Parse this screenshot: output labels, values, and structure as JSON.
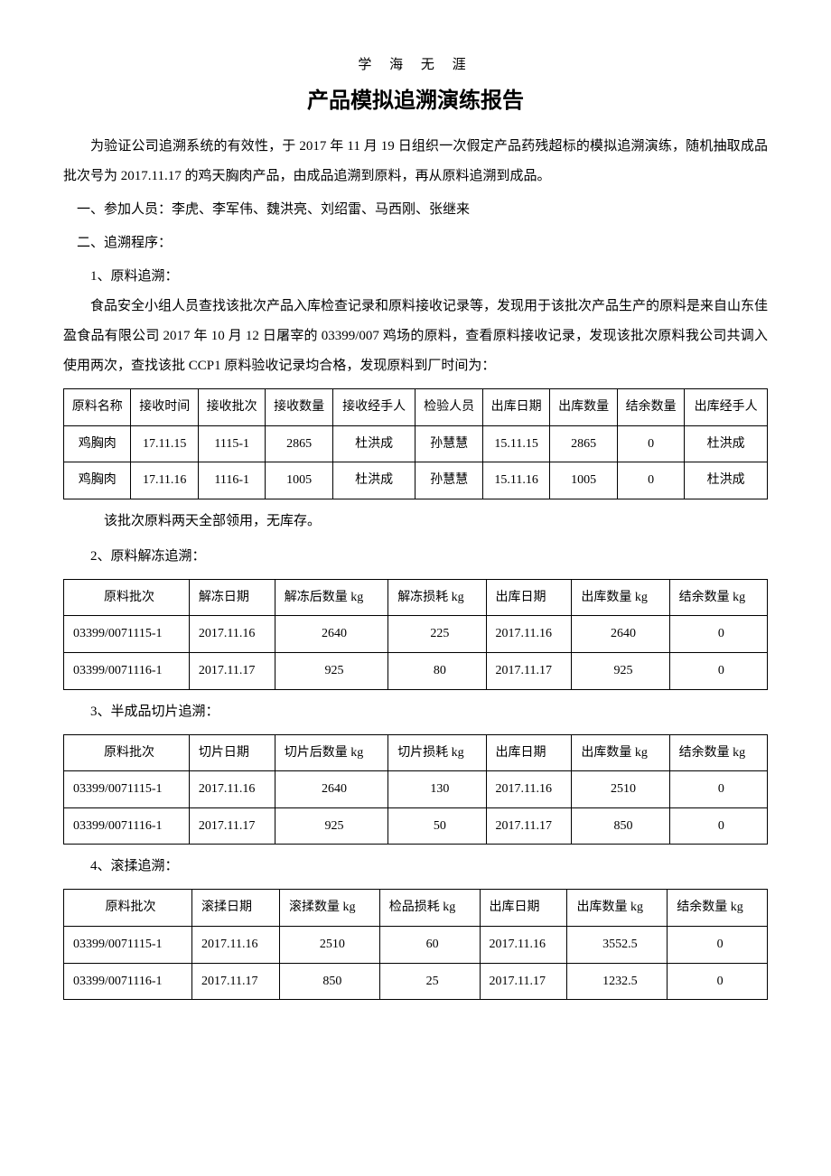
{
  "header_note": "学 海 无 涯",
  "title": "产品模拟追溯演练报告",
  "para1": "为验证公司追溯系统的有效性，于 2017 年 11 月 19 日组织一次假定产品药残超标的模拟追溯演练，随机抽取成品批次号为 2017.11.17 的鸡天胸肉产品，由成品追溯到原料，再从原料追溯到成品。",
  "section1": "一、参加人员：李虎、李军伟、魏洪亮、刘绍雷、马西刚、张继来",
  "section2": "二、追溯程序：",
  "sub1": "1、原料追溯：",
  "para2": "食品安全小组人员查找该批次产品入库检查记录和原料接收记录等，发现用于该批次产品生产的原料是来自山东佳盈食品有限公司 2017 年 10 月 12 日屠宰的 03399/007 鸡场的原料，查看原料接收记录，发现该批次原料我公司共调入使用两次，查找该批 CCP1 原料验收记录均合格，发现原料到厂时间为：",
  "table1": {
    "headers": [
      "原料名称",
      "接收时间",
      "接收批次",
      "接收数量",
      "接收经手人",
      "检验人员",
      "出库日期",
      "出库数量",
      "结余数量",
      "出库经手人"
    ],
    "rows": [
      [
        "鸡胸肉",
        "17.11.15",
        "1115-1",
        "2865",
        "杜洪成",
        "孙慧慧",
        "15.11.15",
        "2865",
        "0",
        "杜洪成"
      ],
      [
        "鸡胸肉",
        "17.11.16",
        "1116-1",
        "1005",
        "杜洪成",
        "孙慧慧",
        "15.11.16",
        "1005",
        "0",
        "杜洪成"
      ]
    ]
  },
  "note1": "该批次原料两天全部领用，无库存。",
  "sub2": "2、原料解冻追溯：",
  "table2": {
    "headers": [
      "原料批次",
      "解冻日期",
      "解冻后数量 kg",
      "解冻损耗 kg",
      "出库日期",
      "出库数量 kg",
      "结余数量 kg"
    ],
    "rows": [
      [
        "03399/0071115-1",
        "2017.11.16",
        "2640",
        "225",
        "2017.11.16",
        "2640",
        "0"
      ],
      [
        "03399/0071116-1",
        "2017.11.17",
        "925",
        "80",
        "2017.11.17",
        "925",
        "0"
      ]
    ]
  },
  "sub3": "3、半成品切片追溯：",
  "table3": {
    "headers": [
      "原料批次",
      "切片日期",
      "切片后数量 kg",
      "切片损耗 kg",
      "出库日期",
      "出库数量 kg",
      "结余数量 kg"
    ],
    "rows": [
      [
        "03399/0071115-1",
        "2017.11.16",
        "2640",
        "130",
        "2017.11.16",
        "2510",
        "0"
      ],
      [
        "03399/0071116-1",
        "2017.11.17",
        "925",
        "50",
        "2017.11.17",
        "850",
        "0"
      ]
    ]
  },
  "sub4": "4、滚揉追溯：",
  "table4": {
    "headers": [
      "原料批次",
      "滚揉日期",
      "滚揉数量 kg",
      "检品损耗 kg",
      "出库日期",
      "出库数量 kg",
      "结余数量 kg"
    ],
    "rows": [
      [
        "03399/0071115-1",
        "2017.11.16",
        "2510",
        "60",
        "2017.11.16",
        "3552.5",
        "0"
      ],
      [
        "03399/0071116-1",
        "2017.11.17",
        "850",
        "25",
        "2017.11.17",
        "1232.5",
        "0"
      ]
    ]
  }
}
